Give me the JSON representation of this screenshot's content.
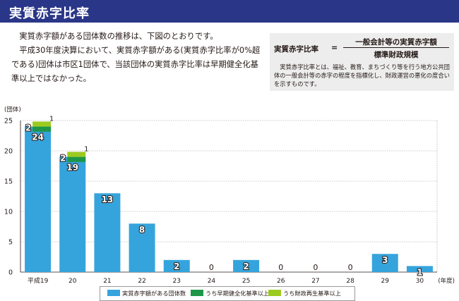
{
  "header": {
    "title": "実質赤字比率"
  },
  "intro": {
    "paragraphs": [
      "実質赤字額がある団体数の推移は、下図のとおりです。",
      "平成30年度決算において、実質赤字額がある(実質赤字比率が0%超である)団体は市区1団体で、当該団体の実質赤字比率は早期健全化基準以上ではなかった。"
    ]
  },
  "definition": {
    "label": "実質赤字比率",
    "equals": "=",
    "numerator": "一般会計等の実質赤字額",
    "denominator": "標準財政規模",
    "note": "実質赤字比率とは、福祉、教育、まちづくり等を行う地方公共団体の一般会計等の赤字の程度を指標化し、財政運営の悪化の度合いを示すものです。"
  },
  "chart_data": {
    "type": "bar",
    "ylabel": "(団体)",
    "xlabel": "(年度)",
    "ylim": [
      0,
      25
    ],
    "yticks": [
      0,
      5,
      10,
      15,
      20,
      25
    ],
    "grid": true,
    "categories": [
      "平成19",
      "20",
      "21",
      "22",
      "23",
      "24",
      "25",
      "26",
      "27",
      "28",
      "29",
      "30"
    ],
    "series": [
      {
        "name": "実質赤字額がある団体数",
        "color": "#36a4dc",
        "values": [
          24,
          19,
          13,
          8,
          2,
          0,
          2,
          0,
          0,
          0,
          3,
          1
        ]
      },
      {
        "name": "うち早期健全化基準以上",
        "color": "#1e9648",
        "values": [
          2,
          2,
          0,
          0,
          0,
          0,
          0,
          0,
          0,
          0,
          0,
          0
        ]
      },
      {
        "name": "うち財政再生基準以上",
        "color": "#9ccb1f",
        "values": [
          1,
          1,
          0,
          0,
          0,
          0,
          0,
          0,
          0,
          0,
          0,
          0
        ]
      }
    ],
    "legend_position": "bottom"
  }
}
